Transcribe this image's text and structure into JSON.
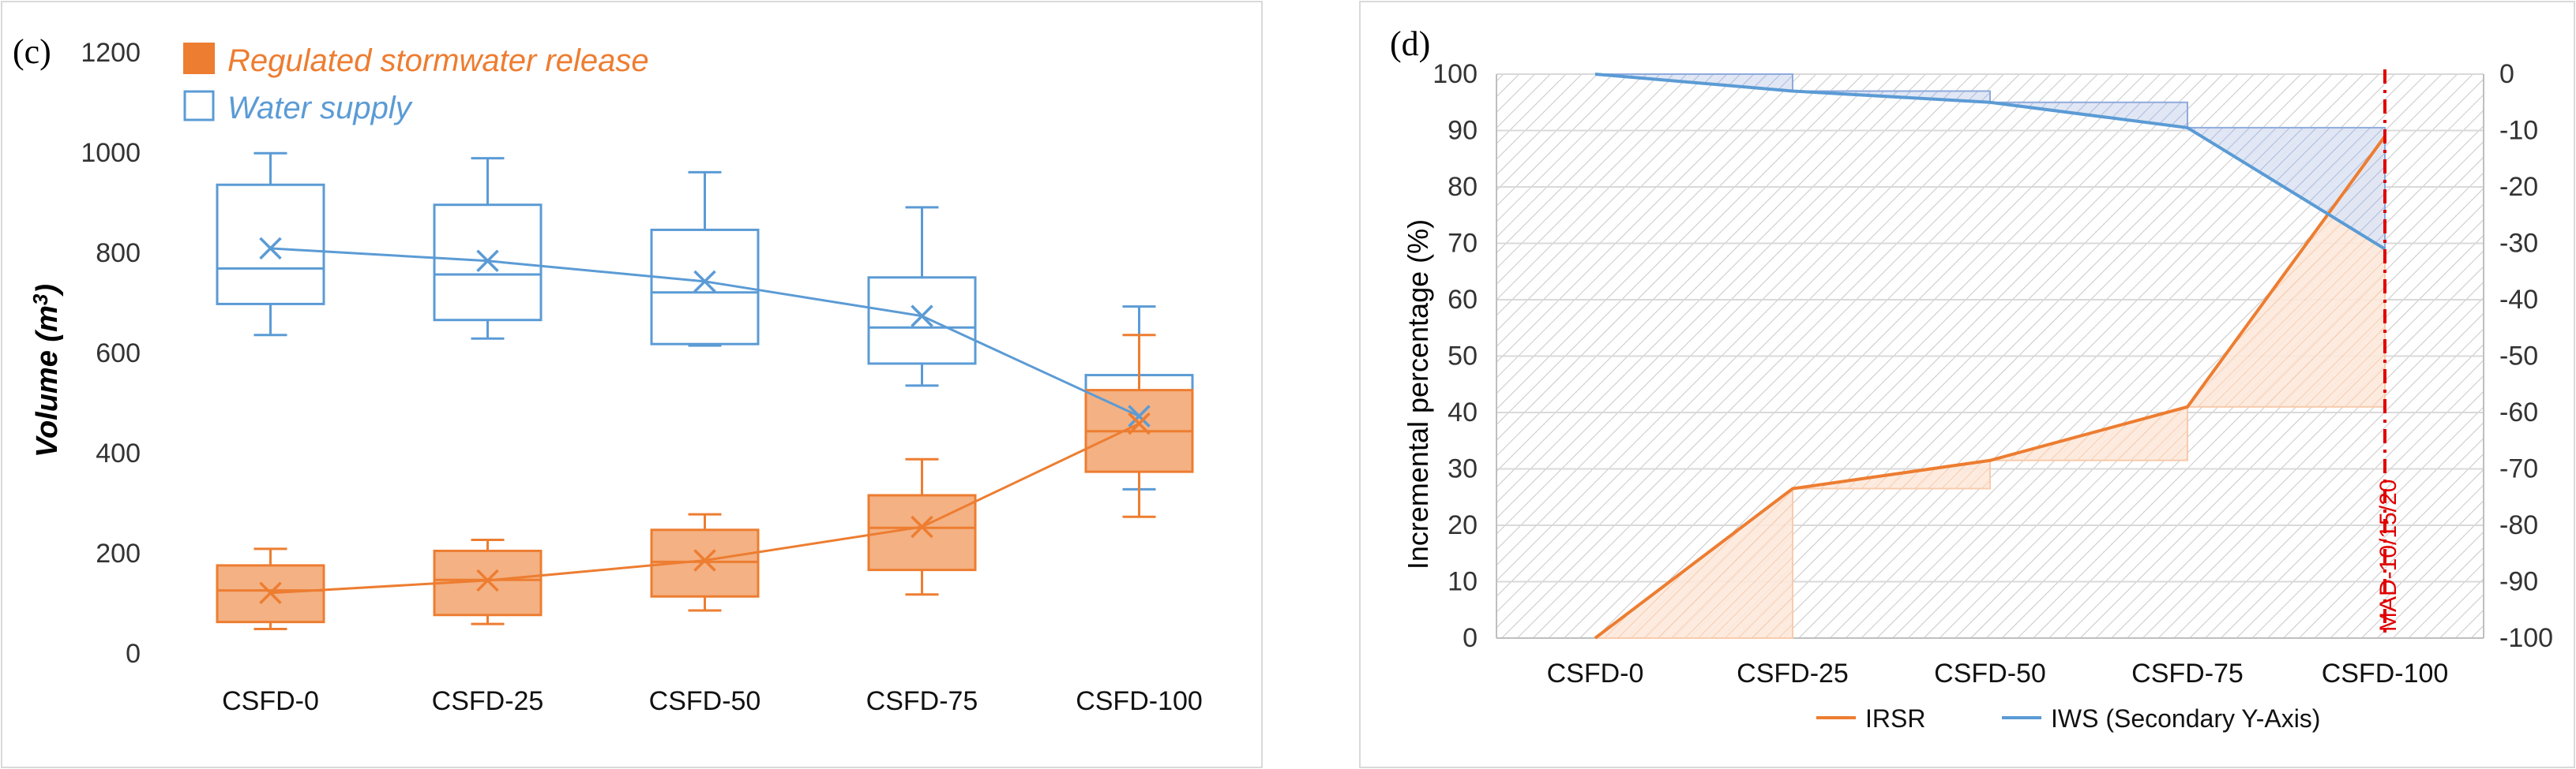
{
  "chart_data": [
    {
      "type": "box",
      "panel_label": "(c)",
      "ylabel": "Volume (m",
      "ylabel_sup": "3",
      "ylabel_close": ")",
      "ylim": [
        0,
        1200
      ],
      "yticks": [
        "0",
        "200",
        "400",
        "600",
        "800",
        "1000",
        "1200"
      ],
      "categories": [
        "CSFD-0",
        "CSFD-25",
        "CSFD-50",
        "CSFD-75",
        "CSFD-100"
      ],
      "grid": false,
      "legend": "top-left",
      "series": [
        {
          "name": "Regulated stormwater release",
          "color": "#ed7d31",
          "fill": "#f4b183",
          "whisker_low": [
            48,
            58,
            85,
            117,
            272
          ],
          "q1": [
            62,
            76,
            113,
            166,
            362
          ],
          "median": [
            125,
            146,
            182,
            250,
            443
          ],
          "q3": [
            175,
            204,
            246,
            315,
            525
          ],
          "whisker_high": [
            208,
            226,
            277,
            387,
            635
          ],
          "mean": [
            120,
            145,
            185,
            252,
            458
          ]
        },
        {
          "name": "Water supply",
          "color": "#5b9bd5",
          "fill": "none",
          "whisker_low": [
            635,
            628,
            614,
            534,
            327
          ],
          "q1": [
            697,
            665,
            617,
            578,
            395
          ],
          "median": [
            768,
            756,
            720,
            650,
            452
          ],
          "q3": [
            935,
            895,
            845,
            750,
            555
          ],
          "whisker_high": [
            998,
            988,
            960,
            890,
            692
          ],
          "mean": [
            808,
            783,
            742,
            673,
            473
          ]
        }
      ]
    },
    {
      "type": "line",
      "panel_label": "(d)",
      "ylabel": "Incremental percentage (%)",
      "ylim": [
        0,
        100
      ],
      "yticks": [
        "0",
        "10",
        "20",
        "30",
        "40",
        "50",
        "60",
        "70",
        "80",
        "90",
        "100"
      ],
      "y2lim": [
        -100,
        0
      ],
      "y2ticks": [
        "-100",
        "-90",
        "-80",
        "-70",
        "-60",
        "-50",
        "-40",
        "-30",
        "-20",
        "-10",
        "0"
      ],
      "categories": [
        "CSFD-0",
        "CSFD-25",
        "CSFD-50",
        "CSFD-75",
        "CSFD-100"
      ],
      "legend": "bottom",
      "annotation": "MAD-10/15/20",
      "series": [
        {
          "name": "IRSR",
          "axis": "primary",
          "color": "#ed7d31",
          "values": [
            0,
            26.5,
            31.5,
            41,
            89
          ]
        },
        {
          "name": "IWS (Secondary Y-Axis)",
          "axis": "secondary",
          "color": "#5b9bd5",
          "values": [
            0,
            -3,
            -5,
            -9.5,
            -31
          ]
        }
      ]
    }
  ]
}
